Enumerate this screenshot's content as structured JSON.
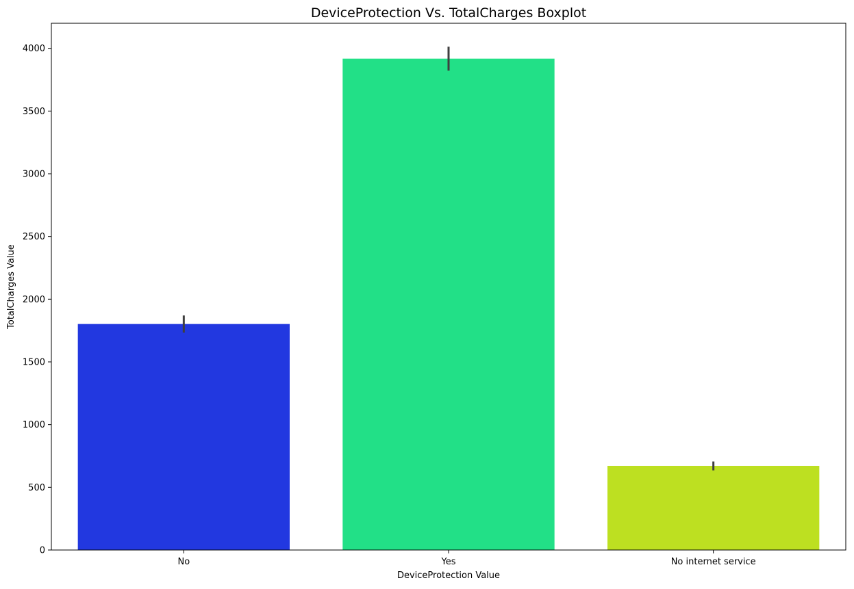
{
  "chart_data": {
    "type": "bar",
    "title": "DeviceProtection Vs. TotalCharges Boxplot",
    "xlabel": "DeviceProtection Value",
    "ylabel": "TotalCharges Value",
    "categories": [
      "No",
      "Yes",
      "No internet service"
    ],
    "values": [
      1802,
      3918,
      671
    ],
    "error_low": [
      1733,
      3822,
      635
    ],
    "error_high": [
      1870,
      4013,
      706
    ],
    "colors": [
      "#2238e0",
      "#22e087",
      "#bde021"
    ],
    "errorbar_color": "#3f3f3f",
    "ylim": [
      0,
      4200
    ],
    "yticks": [
      0,
      500,
      1000,
      1500,
      2000,
      2500,
      3000,
      3500,
      4000
    ],
    "grid": false,
    "legend": "none"
  }
}
